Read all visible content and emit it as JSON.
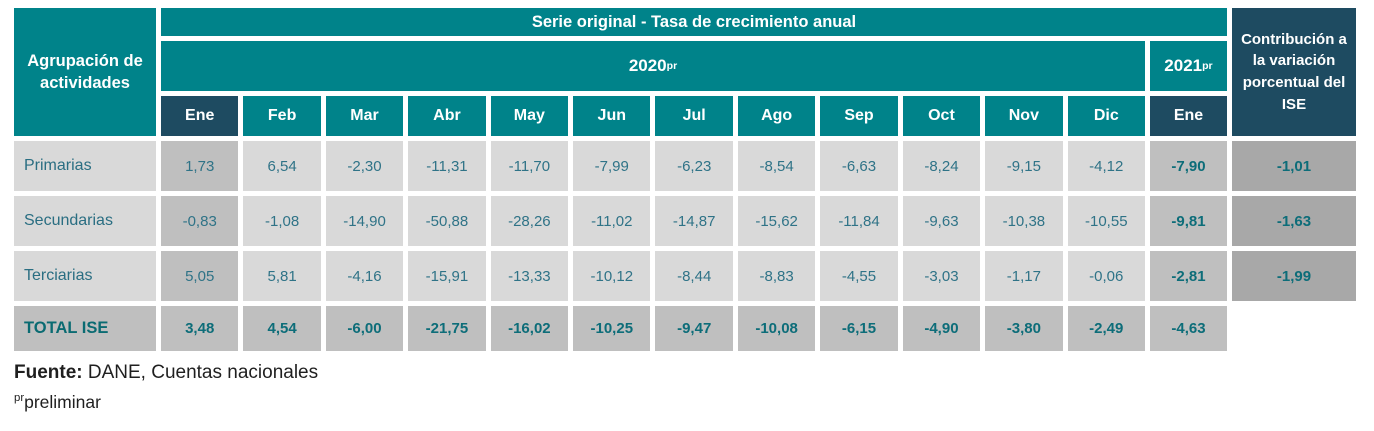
{
  "colors": {
    "teal_header": "#00838A",
    "navy_header": "#1E4B61",
    "cell_light_gray": "#D9D9D9",
    "cell_mid_gray": "#BFBFBF",
    "cell_dark_gray": "#A8A8A8",
    "text_teal": "#2F7387",
    "text_teal_bold": "#0D6D79",
    "footer_text": "#1F1F1F"
  },
  "table": {
    "corner_header": "Agrupación de actividades",
    "title": "Serie original - Tasa de crecimiento anual",
    "year_2020": {
      "label": "2020",
      "sup": "pr"
    },
    "year_2021": {
      "label": "2021",
      "sup": "pr"
    },
    "contribution_header": "Contribución a la variación porcentual del ISE",
    "months_2020": [
      "Ene",
      "Feb",
      "Mar",
      "Abr",
      "May",
      "Jun",
      "Jul",
      "Ago",
      "Sep",
      "Oct",
      "Nov",
      "Dic"
    ],
    "month_2021": "Ene",
    "rows": [
      {
        "label": "Primarias",
        "values": [
          "1,73",
          "6,54",
          "-2,30",
          "-11,31",
          "-11,70",
          "-7,99",
          "-6,23",
          "-8,54",
          "-6,63",
          "-8,24",
          "-9,15",
          "-4,12"
        ],
        "y2021": "-7,90",
        "contrib": "-1,01"
      },
      {
        "label": "Secundarias",
        "values": [
          "-0,83",
          "-1,08",
          "-14,90",
          "-50,88",
          "-28,26",
          "-11,02",
          "-14,87",
          "-15,62",
          "-11,84",
          "-9,63",
          "-10,38",
          "-10,55"
        ],
        "y2021": "-9,81",
        "contrib": "-1,63"
      },
      {
        "label": "Terciarias",
        "values": [
          "5,05",
          "5,81",
          "-4,16",
          "-15,91",
          "-13,33",
          "-10,12",
          "-8,44",
          "-8,83",
          "-4,55",
          "-3,03",
          "-1,17",
          "-0,06"
        ],
        "y2021": "-2,81",
        "contrib": "-1,99"
      },
      {
        "label": "TOTAL ISE",
        "values": [
          "3,48",
          "4,54",
          "-6,00",
          "-21,75",
          "-16,02",
          "-10,25",
          "-9,47",
          "-10,08",
          "-6,15",
          "-4,90",
          "-3,80",
          "-2,49"
        ],
        "y2021": "-4,63",
        "contrib": null
      }
    ]
  },
  "footer": {
    "source_label": "Fuente:",
    "source_text": " DANE, Cuentas nacionales",
    "note_sup": "pr",
    "note_text": "preliminar"
  },
  "chart_data": {
    "type": "table",
    "title": "Serie original - Tasa de crecimiento anual",
    "row_header": "Agrupación de actividades",
    "column_groups": [
      {
        "year": "2020",
        "note": "preliminar",
        "months": [
          "Ene",
          "Feb",
          "Mar",
          "Abr",
          "May",
          "Jun",
          "Jul",
          "Ago",
          "Sep",
          "Oct",
          "Nov",
          "Dic"
        ]
      },
      {
        "year": "2021",
        "note": "preliminar",
        "months": [
          "Ene"
        ]
      }
    ],
    "extra_column": "Contribución a la variación porcentual del ISE",
    "rows": [
      {
        "label": "Primarias",
        "y2020": [
          1.73,
          6.54,
          -2.3,
          -11.31,
          -11.7,
          -7.99,
          -6.23,
          -8.54,
          -6.63,
          -8.24,
          -9.15,
          -4.12
        ],
        "y2021_ene": -7.9,
        "contribucion_ise": -1.01
      },
      {
        "label": "Secundarias",
        "y2020": [
          -0.83,
          -1.08,
          -14.9,
          -50.88,
          -28.26,
          -11.02,
          -14.87,
          -15.62,
          -11.84,
          -9.63,
          -10.38,
          -10.55
        ],
        "y2021_ene": -9.81,
        "contribucion_ise": -1.63
      },
      {
        "label": "Terciarias",
        "y2020": [
          5.05,
          5.81,
          -4.16,
          -15.91,
          -13.33,
          -10.12,
          -8.44,
          -8.83,
          -4.55,
          -3.03,
          -1.17,
          -0.06
        ],
        "y2021_ene": -2.81,
        "contribucion_ise": -1.99
      },
      {
        "label": "TOTAL ISE",
        "y2020": [
          3.48,
          4.54,
          -6.0,
          -21.75,
          -16.02,
          -10.25,
          -9.47,
          -10.08,
          -6.15,
          -4.9,
          -3.8,
          -2.49
        ],
        "y2021_ene": -4.63,
        "contribucion_ise": null
      }
    ],
    "source": "Fuente: DANE, Cuentas nacionales",
    "note": "pr preliminar"
  }
}
